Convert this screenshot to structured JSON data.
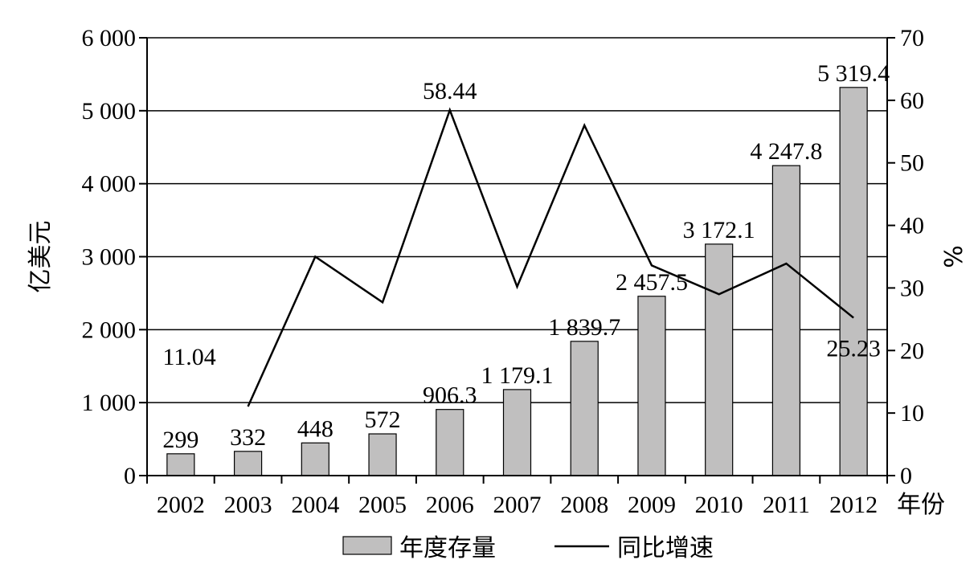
{
  "chart_data": {
    "type": "bar",
    "categories": [
      "2002",
      "2003",
      "2004",
      "2005",
      "2006",
      "2007",
      "2008",
      "2009",
      "2010",
      "2011",
      "2012"
    ],
    "xlabel": "年份",
    "ylabel": "亿美元",
    "y2label": "%",
    "ylim": [
      0,
      6000
    ],
    "y2lim": [
      0,
      70
    ],
    "y_ticks": [
      "0",
      "1 000",
      "2 000",
      "3 000",
      "4 000",
      "5 000",
      "6 000"
    ],
    "y2_ticks": [
      "0",
      "10",
      "20",
      "30",
      "40",
      "50",
      "60",
      "70"
    ],
    "grid": true,
    "legend_position": "bottom",
    "series": [
      {
        "name": "年度存量",
        "type": "bar",
        "color": "#c0bfbf",
        "values": [
          299,
          332,
          448,
          572,
          906.3,
          1179.1,
          1839.7,
          2457.5,
          3172.1,
          4247.8,
          5319.4
        ],
        "labels": [
          "299",
          "332",
          "448",
          "572",
          "906.3",
          "1 179.1",
          "1 839.7",
          "2 457.5",
          "3 172.1",
          "4 247.8",
          "5 319.4"
        ]
      },
      {
        "name": "同比增速",
        "type": "line",
        "axis": "right",
        "color": "#000000",
        "start_index": 1,
        "values": [
          null,
          11.04,
          35.0,
          27.7,
          58.44,
          30.2,
          56.0,
          33.6,
          29.0,
          33.9,
          25.23
        ],
        "labels": [
          null,
          "11.04",
          null,
          null,
          "58.44",
          null,
          null,
          null,
          null,
          null,
          "25.23"
        ]
      }
    ]
  }
}
